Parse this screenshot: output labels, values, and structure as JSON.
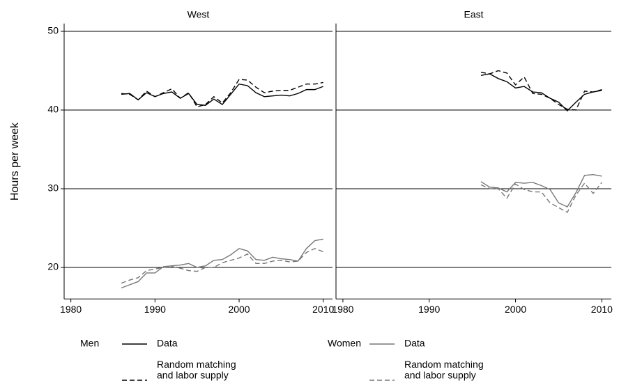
{
  "chart_data": {
    "type": "line",
    "ylabel": "Hours per week",
    "xlim": [
      1979.2,
      2011.1
    ],
    "xticks": [
      1980,
      1990,
      2000,
      2010
    ],
    "ylim": [
      16,
      51
    ],
    "yticks": [
      20,
      30,
      40,
      50
    ],
    "grid": true,
    "panels": [
      {
        "title": "West",
        "x": [
          1986,
          1987,
          1988,
          1989,
          1990,
          1991,
          1992,
          1993,
          1994,
          1995,
          1996,
          1997,
          1998,
          1999,
          2000,
          2001,
          2002,
          2003,
          2004,
          2005,
          2006,
          2007,
          2008,
          2009,
          2010
        ],
        "series": [
          {
            "name": "Data",
            "group": "Men",
            "color": "#000000",
            "dashed": false,
            "values": [
              42.0,
              42.1,
              41.3,
              42.2,
              41.7,
              42.1,
              42.3,
              41.5,
              42.1,
              40.7,
              40.6,
              41.4,
              40.7,
              42.0,
              43.3,
              43.1,
              42.2,
              41.7,
              41.8,
              41.9,
              41.8,
              42.1,
              42.6,
              42.6,
              43.0
            ]
          },
          {
            "name": "Random matching\nand labor supply",
            "group": "Men",
            "color": "#000000",
            "dashed": true,
            "values": [
              42.1,
              42.0,
              41.3,
              42.4,
              41.7,
              42.2,
              42.7,
              41.5,
              42.2,
              40.4,
              40.7,
              41.7,
              40.9,
              42.2,
              43.9,
              43.8,
              42.9,
              42.2,
              42.4,
              42.5,
              42.5,
              42.9,
              43.3,
              43.3,
              43.5
            ]
          },
          {
            "name": "Data",
            "group": "Women",
            "color": "#777777",
            "dashed": false,
            "values": [
              17.4,
              17.8,
              18.2,
              19.3,
              19.3,
              20.1,
              20.2,
              20.3,
              20.5,
              20.0,
              20.2,
              20.9,
              21.0,
              21.6,
              22.4,
              22.1,
              21.0,
              20.9,
              21.3,
              21.1,
              21.0,
              20.8,
              22.4,
              23.4,
              23.6
            ]
          },
          {
            "name": "Random matching\nand labor supply",
            "group": "Women",
            "color": "#777777",
            "dashed": true,
            "values": [
              18.0,
              18.4,
              18.7,
              19.6,
              19.8,
              20.0,
              20.1,
              19.9,
              19.6,
              19.5,
              20.0,
              20.0,
              20.6,
              20.9,
              21.2,
              21.7,
              20.5,
              20.5,
              20.8,
              20.9,
              20.7,
              20.8,
              21.9,
              22.4,
              22.0
            ]
          }
        ]
      },
      {
        "title": "East",
        "x": [
          1996,
          1997,
          1998,
          1999,
          2000,
          2001,
          2002,
          2003,
          2004,
          2005,
          2006,
          2007,
          2008,
          2009,
          2010
        ],
        "series": [
          {
            "name": "Data",
            "group": "Men",
            "color": "#000000",
            "dashed": false,
            "values": [
              44.4,
              44.6,
              44.0,
              43.6,
              42.8,
              43.0,
              42.3,
              42.2,
              41.5,
              41.0,
              39.9,
              41.0,
              42.0,
              42.3,
              42.5
            ]
          },
          {
            "name": "Random matching\nand labor supply",
            "group": "Men",
            "color": "#000000",
            "dashed": true,
            "values": [
              44.8,
              44.6,
              45.0,
              44.7,
              43.2,
              44.2,
              42.1,
              42.0,
              41.5,
              40.7,
              40.1,
              40.0,
              42.4,
              42.3,
              42.6
            ]
          },
          {
            "name": "Data",
            "group": "Women",
            "color": "#777777",
            "dashed": false,
            "values": [
              30.9,
              30.2,
              30.1,
              29.6,
              30.8,
              30.7,
              30.8,
              30.4,
              29.9,
              28.2,
              27.7,
              29.5,
              31.7,
              31.8,
              31.6
            ]
          },
          {
            "name": "Random matching\nand labor supply",
            "group": "Women",
            "color": "#777777",
            "dashed": true,
            "values": [
              30.5,
              30.0,
              30.0,
              28.8,
              30.6,
              29.9,
              29.6,
              29.6,
              28.2,
              27.6,
              27.0,
              29.2,
              30.7,
              29.4,
              30.8
            ]
          }
        ]
      }
    ]
  }
}
